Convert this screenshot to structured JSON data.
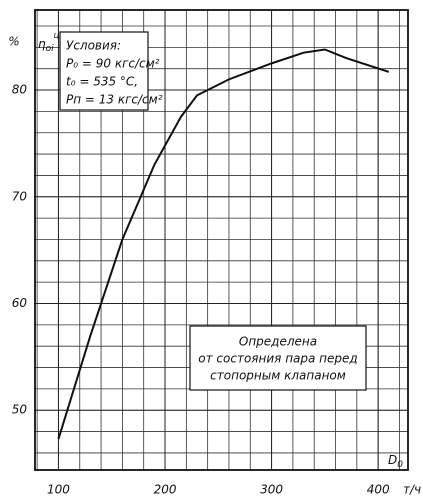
{
  "chart_data": {
    "type": "line",
    "y_unit": "%",
    "y_label": "η",
    "y_label_sub": "oi",
    "y_label_sup": "ЦВД",
    "x_label": "D",
    "x_label_sub": "0",
    "x_unit": "т/ч",
    "x": [
      100,
      130,
      160,
      190,
      215,
      230,
      260,
      300,
      330,
      350,
      370,
      410
    ],
    "values": [
      47.3,
      57,
      66,
      73,
      77.5,
      79.5,
      81,
      82.5,
      83.5,
      83.8,
      83,
      81.7
    ],
    "color": "#111111",
    "xlim": [
      78,
      428
    ],
    "ylim": [
      44.4,
      87.5
    ],
    "xticks": [
      100,
      200,
      300,
      400
    ],
    "yticks": [
      50,
      60,
      70,
      80
    ],
    "grid": true,
    "conditions": [
      "Условия:",
      "P₀ = 90 кгс/см²",
      "t₀ = 535 °C,",
      "Pп = 13 кгс/см²"
    ],
    "note": [
      "Определена",
      "от состояния пара перед",
      "стопорным клапаном"
    ]
  }
}
